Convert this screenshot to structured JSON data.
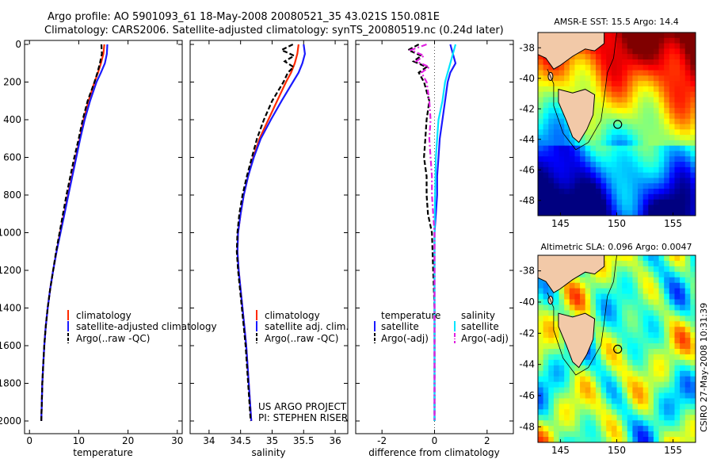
{
  "header": {
    "line1": "Argo profile: AO 5901093_61 18-May-2008 20080521_35 43.021S 150.081E",
    "line2": "Climatology: CARS2006. Satellite-adjusted climatology: synTS_20080519.nc (0.24d later)"
  },
  "colors": {
    "climatology": "#ff2a00",
    "satellite": "#1a1aff",
    "argo": "#000000",
    "satellite_salinity": "#00e5ff",
    "argo_salinity_adj": "#e020e0",
    "land": "#f2c9a8",
    "coast": "#000000"
  },
  "chart_data": [
    {
      "type": "line",
      "name": "temperature-panel",
      "xlabel": "temperature",
      "xlim": [
        -1,
        31
      ],
      "ylim": [
        2000,
        0
      ],
      "xticks": [
        0,
        10,
        20,
        30
      ],
      "yticks": [
        0,
        200,
        400,
        600,
        800,
        1000,
        1200,
        1400,
        1600,
        1800,
        2000
      ],
      "legend_position": "lower-right",
      "series": [
        {
          "name": "climatology",
          "color": "#ff2a00",
          "style": "solid",
          "depth": [
            0,
            50,
            100,
            150,
            200,
            300,
            400,
            500,
            600,
            700,
            800,
            900,
            1000,
            1100,
            1200,
            1300,
            1400,
            1500,
            1600,
            1700,
            1800,
            1900,
            2000
          ],
          "values": [
            15.2,
            15.0,
            14.5,
            13.9,
            13.2,
            12.0,
            11.0,
            10.2,
            9.4,
            8.6,
            7.8,
            7.0,
            6.2,
            5.5,
            4.8,
            4.2,
            3.7,
            3.3,
            3.0,
            2.8,
            2.6,
            2.5,
            2.4
          ]
        },
        {
          "name": "satellite-adjusted climatology",
          "color": "#1a1aff",
          "style": "solid",
          "depth": [
            0,
            50,
            100,
            150,
            200,
            300,
            400,
            500,
            600,
            700,
            800,
            900,
            1000,
            1100,
            1200,
            1300,
            1400,
            1500,
            1600,
            1700,
            1800,
            1900,
            2000
          ],
          "values": [
            15.8,
            15.7,
            15.3,
            14.5,
            13.6,
            12.3,
            11.2,
            10.3,
            9.5,
            8.7,
            7.9,
            7.1,
            6.3,
            5.5,
            4.8,
            4.2,
            3.7,
            3.3,
            3.0,
            2.8,
            2.6,
            2.5,
            2.4
          ]
        },
        {
          "name": "Argo(..raw -QC)",
          "color": "#000000",
          "style": "dashed",
          "depth": [
            0,
            50,
            100,
            150,
            200,
            300,
            400,
            500,
            600,
            700,
            800,
            900,
            1000,
            1100,
            1200,
            1300,
            1400,
            1500,
            1600,
            1700,
            1800,
            1900,
            2000
          ],
          "values": [
            14.6,
            14.7,
            14.3,
            13.8,
            13.2,
            11.8,
            10.8,
            10.0,
            9.1,
            8.3,
            7.5,
            6.8,
            6.1,
            5.4,
            4.8,
            4.2,
            3.7,
            3.3,
            3.0,
            2.8,
            2.6,
            2.5,
            2.4
          ]
        }
      ]
    },
    {
      "type": "line",
      "name": "salinity-panel",
      "xlabel": "salinity",
      "xlim": [
        33.7,
        36.2
      ],
      "ylim": [
        2000,
        0
      ],
      "xticks": [
        34,
        34.5,
        35,
        35.5,
        36
      ],
      "xticklabels": [
        "34",
        "34.5",
        "35",
        "35.5",
        "36"
      ],
      "legend_position": "lower-right",
      "series": [
        {
          "name": "climatology",
          "color": "#ff2a00",
          "style": "solid",
          "depth": [
            0,
            50,
            100,
            150,
            200,
            300,
            400,
            500,
            600,
            700,
            800,
            900,
            1000,
            1100,
            1200,
            1300,
            1400,
            1500,
            1600,
            1700,
            1800,
            1900,
            2000
          ],
          "values": [
            35.42,
            35.4,
            35.36,
            35.3,
            35.22,
            35.08,
            34.94,
            34.8,
            34.7,
            34.62,
            34.55,
            34.5,
            34.46,
            34.45,
            34.47,
            34.5,
            34.53,
            34.56,
            34.59,
            34.61,
            34.63,
            34.65,
            34.67
          ]
        },
        {
          "name": "satellite adj. clim.",
          "color": "#1a1aff",
          "style": "solid",
          "depth": [
            0,
            50,
            100,
            150,
            200,
            300,
            400,
            500,
            600,
            700,
            800,
            900,
            1000,
            1100,
            1200,
            1300,
            1400,
            1500,
            1600,
            1700,
            1800,
            1900,
            2000
          ],
          "values": [
            35.5,
            35.52,
            35.48,
            35.42,
            35.33,
            35.15,
            34.98,
            34.82,
            34.71,
            34.62,
            34.55,
            34.5,
            34.46,
            34.45,
            34.47,
            34.5,
            34.53,
            34.56,
            34.59,
            34.61,
            34.63,
            34.65,
            34.67
          ]
        },
        {
          "name": "Argo(..raw -QC)",
          "color": "#000000",
          "style": "dashed",
          "depth": [
            0,
            30,
            60,
            90,
            120,
            150,
            200,
            300,
            400,
            500,
            600,
            700,
            800,
            900,
            1000,
            1100,
            1200,
            1300,
            1400,
            1500,
            1600,
            1700,
            1800,
            1900,
            2000
          ],
          "values": [
            35.33,
            35.15,
            35.35,
            35.2,
            35.34,
            35.25,
            35.18,
            35.0,
            34.87,
            34.76,
            34.68,
            34.6,
            34.53,
            34.48,
            34.45,
            34.44,
            34.46,
            34.49,
            34.52,
            34.55,
            34.58,
            34.6,
            34.62,
            34.64,
            34.66
          ]
        }
      ],
      "annotations": [
        "US ARGO PROJECT",
        "PI: STEPHEN RISER"
      ]
    },
    {
      "type": "line",
      "name": "difference-panel",
      "xlabel": "difference from climatology",
      "xlim": [
        -3,
        3
      ],
      "ylim": [
        2000,
        0
      ],
      "xticks": [
        -2,
        0,
        2
      ],
      "legend_columns": [
        "temperature",
        "salinity"
      ],
      "series": [
        {
          "name": "satellite",
          "group": "temperature",
          "color": "#1a1aff",
          "style": "solid",
          "depth": [
            0,
            50,
            100,
            150,
            200,
            300,
            400,
            500,
            600,
            700,
            800,
            900,
            1000,
            1200,
            1400,
            1600,
            1800,
            2000
          ],
          "values": [
            0.6,
            0.7,
            0.8,
            0.6,
            0.5,
            0.4,
            0.3,
            0.2,
            0.15,
            0.1,
            0.1,
            0.05,
            0.0,
            0.0,
            0.0,
            0.0,
            0.0,
            0.0
          ]
        },
        {
          "name": "Argo(-adj)",
          "group": "temperature",
          "color": "#000000",
          "style": "dashed",
          "depth": [
            0,
            30,
            60,
            90,
            120,
            150,
            200,
            300,
            400,
            500,
            600,
            700,
            800,
            900,
            1000,
            1200,
            1400,
            1600,
            1800,
            2000
          ],
          "values": [
            -0.6,
            -1.0,
            -0.5,
            -0.8,
            -0.3,
            -0.6,
            -0.4,
            -0.2,
            -0.3,
            -0.35,
            -0.4,
            -0.3,
            -0.3,
            -0.25,
            -0.1,
            -0.05,
            0.0,
            0.0,
            0.0,
            0.0
          ]
        },
        {
          "name": "satellite",
          "group": "salinity",
          "color": "#00e5ff",
          "style": "solid",
          "depth": [
            0,
            50,
            100,
            150,
            200,
            300,
            400,
            500,
            600,
            800,
            1000,
            1200,
            1400,
            1600,
            1800,
            2000
          ],
          "values": [
            0.8,
            0.7,
            0.6,
            0.5,
            0.4,
            0.3,
            0.15,
            0.1,
            0.05,
            0.02,
            0.0,
            0.0,
            0.0,
            0.0,
            0.0,
            0.0
          ]
        },
        {
          "name": "Argo(-adj)",
          "group": "salinity",
          "color": "#e020e0",
          "style": "dashdot",
          "depth": [
            0,
            30,
            60,
            90,
            120,
            150,
            200,
            300,
            400,
            500,
            600,
            700,
            800,
            900,
            1000,
            1200,
            1400,
            1600,
            1800,
            2000
          ],
          "values": [
            -0.3,
            -0.9,
            -0.4,
            -0.7,
            -0.2,
            -0.5,
            -0.3,
            -0.2,
            -0.15,
            -0.2,
            -0.15,
            -0.1,
            -0.1,
            -0.05,
            0.0,
            0.0,
            0.0,
            0.0,
            0.0,
            0.0
          ]
        }
      ]
    }
  ],
  "maps": {
    "sst": {
      "title": "AMSR-E SST: 15.5 Argo: 14.4",
      "xticks": [
        "145",
        "150",
        "155"
      ],
      "yticks": [
        "-38",
        "-40",
        "-42",
        "-44",
        "-46",
        "-48"
      ],
      "lon_range": [
        143,
        157
      ],
      "lat_range": [
        -49,
        -37
      ]
    },
    "sla": {
      "title": "Altimetric SLA: 0.096 Argo: 0.0047",
      "xticks": [
        "145",
        "150",
        "155"
      ],
      "yticks": [
        "-38",
        "-40",
        "-42",
        "-44",
        "-46",
        "-48"
      ],
      "lon_range": [
        143,
        157
      ],
      "lat_range": [
        -49,
        -37
      ]
    }
  },
  "credit": "CSIRO 27-May-2008 10:31:39"
}
